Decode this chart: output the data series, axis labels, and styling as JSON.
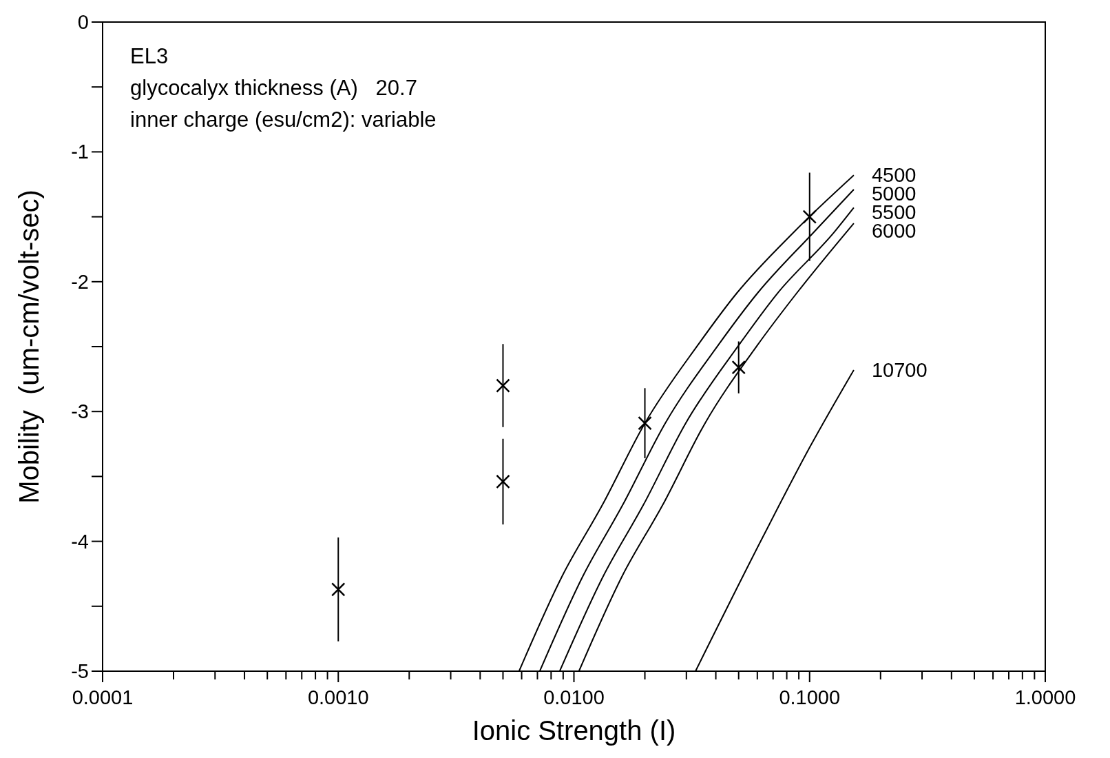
{
  "chart_data": {
    "type": "line",
    "xlabel": "Ionic Strength (I)",
    "ylabel": "Mobility  (um-cm/volt-sec)",
    "log": "x",
    "xlim": [
      0.0001,
      1
    ],
    "ylim": [
      -5,
      0
    ],
    "xticks": [
      {
        "value": 0.0001,
        "label": "0.0001"
      },
      {
        "value": 0.0002,
        "label": null
      },
      {
        "value": 0.0003,
        "label": null
      },
      {
        "value": 0.0004,
        "label": null
      },
      {
        "value": 0.0005,
        "label": null
      },
      {
        "value": 0.0006,
        "label": null
      },
      {
        "value": 0.0007,
        "label": null
      },
      {
        "value": 0.0008,
        "label": null
      },
      {
        "value": 0.0009,
        "label": null
      },
      {
        "value": 0.001,
        "label": "0.0010"
      },
      {
        "value": 0.002,
        "label": null
      },
      {
        "value": 0.003,
        "label": null
      },
      {
        "value": 0.004,
        "label": null
      },
      {
        "value": 0.005,
        "label": null
      },
      {
        "value": 0.006,
        "label": null
      },
      {
        "value": 0.007,
        "label": null
      },
      {
        "value": 0.008,
        "label": null
      },
      {
        "value": 0.009,
        "label": null
      },
      {
        "value": 0.01,
        "label": "0.0100"
      },
      {
        "value": 0.02,
        "label": null
      },
      {
        "value": 0.03,
        "label": null
      },
      {
        "value": 0.04,
        "label": null
      },
      {
        "value": 0.05,
        "label": null
      },
      {
        "value": 0.06,
        "label": null
      },
      {
        "value": 0.07,
        "label": null
      },
      {
        "value": 0.08,
        "label": null
      },
      {
        "value": 0.09,
        "label": null
      },
      {
        "value": 0.1,
        "label": "0.1000"
      },
      {
        "value": 0.2,
        "label": null
      },
      {
        "value": 0.3,
        "label": null
      },
      {
        "value": 0.4,
        "label": null
      },
      {
        "value": 0.5,
        "label": null
      },
      {
        "value": 0.6,
        "label": null
      },
      {
        "value": 0.7,
        "label": null
      },
      {
        "value": 0.8,
        "label": null
      },
      {
        "value": 0.9,
        "label": null
      },
      {
        "value": 1,
        "label": "1.0000"
      }
    ],
    "yticks": [
      0,
      {
        "value": -0.5,
        "label": null
      },
      -1,
      {
        "value": -1.5,
        "label": null
      },
      -2,
      {
        "value": -2.5,
        "label": null
      },
      -3,
      {
        "value": -3.5,
        "label": null
      },
      -4,
      {
        "value": -4.5,
        "label": null
      },
      -5
    ],
    "grid": false,
    "line_style": "solid",
    "annotations": [
      "EL3",
      "glycocalyx thickness (A)   20.7",
      "inner charge (esu/cm2): variable"
    ],
    "series": [
      {
        "name": "4500",
        "color": "#000000",
        "marker": "none",
        "x": [
          0.00585,
          0.0089,
          0.0132,
          0.02,
          0.0335,
          0.049,
          0.0855,
          0.154
        ],
        "values": [
          -5,
          -4.27,
          -3.72,
          -3.09,
          -2.49,
          -2.09,
          -1.62,
          -1.18
        ]
      },
      {
        "name": "5000",
        "color": "#000000",
        "marker": "none",
        "x": [
          0.00716,
          0.0109,
          0.0161,
          0.0244,
          0.0409,
          0.06,
          0.104,
          0.154
        ],
        "values": [
          -5,
          -4.27,
          -3.72,
          -3.09,
          -2.49,
          -2.09,
          -1.62,
          -1.29
        ]
      },
      {
        "name": "5500",
        "color": "#000000",
        "marker": "none",
        "x": [
          0.0087,
          0.0133,
          0.0197,
          0.0298,
          0.05,
          0.073,
          0.127,
          0.154
        ],
        "values": [
          -5,
          -4.27,
          -3.72,
          -3.09,
          -2.49,
          -2.09,
          -1.62,
          -1.43
        ]
      },
      {
        "name": "6000",
        "color": "#000000",
        "marker": "none",
        "x": [
          0.0105,
          0.016,
          0.0238,
          0.036,
          0.06,
          0.088,
          0.154
        ],
        "values": [
          -5,
          -4.27,
          -3.72,
          -3.09,
          -2.49,
          -2.09,
          -1.55
        ]
      },
      {
        "name": "10700",
        "color": "#000000",
        "marker": "none",
        "x": [
          0.0328,
          0.0636,
          0.1005,
          0.154
        ],
        "values": [
          -5,
          -3.96,
          -3.27,
          -2.68
        ]
      },
      {
        "type": "scatter",
        "color": "#000000",
        "marker": "cross",
        "x": [
          0.001,
          0.005,
          0.005,
          0.02,
          0.05,
          0.1
        ],
        "values": [
          -4.37,
          -2.8,
          -3.54,
          -3.09,
          -2.66,
          -1.5
        ],
        "errors": [
          0.4,
          0.32,
          0.33,
          0.27,
          0.2,
          0.34
        ]
      }
    ]
  }
}
